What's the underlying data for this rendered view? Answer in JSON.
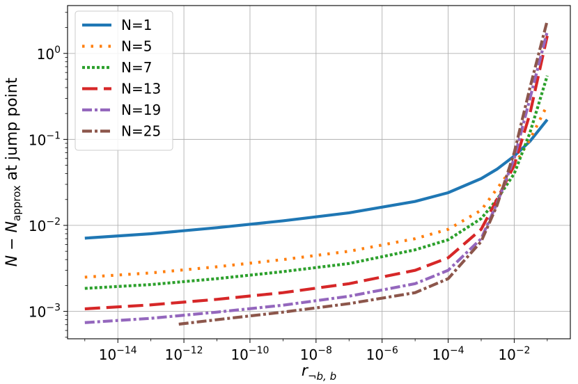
{
  "chart_data": {
    "type": "line",
    "xscale": "log",
    "yscale": "log",
    "xlim": [
      3e-16,
      0.5
    ],
    "ylim": [
      0.00048,
      3.6
    ],
    "grid": true,
    "legend_position": "top-left",
    "xlabel": {
      "main": "r",
      "sub": "¬b, b"
    },
    "ylabel": {
      "prefix": "N − N",
      "sub": "approx",
      "suffix": " at jump point"
    },
    "x_ticks": [
      {
        "value": 1e-14,
        "label": "10",
        "exp": "−14"
      },
      {
        "value": 1e-12,
        "label": "10",
        "exp": "−12"
      },
      {
        "value": 1e-10,
        "label": "10",
        "exp": "−10"
      },
      {
        "value": 1e-08,
        "label": "10",
        "exp": "−8"
      },
      {
        "value": 1e-06,
        "label": "10",
        "exp": "−6"
      },
      {
        "value": 0.0001,
        "label": "10",
        "exp": "−4"
      },
      {
        "value": 0.01,
        "label": "10",
        "exp": "−2"
      }
    ],
    "y_ticks": [
      {
        "value": 0.001,
        "label": "10",
        "exp": "−3"
      },
      {
        "value": 0.01,
        "label": "10",
        "exp": "−2"
      },
      {
        "value": 0.1,
        "label": "10",
        "exp": "−1"
      },
      {
        "value": 1,
        "label": "10",
        "exp": "0"
      }
    ],
    "series": [
      {
        "name": "N=1",
        "color": "#1f77b4",
        "style": "solid",
        "x": [
          1e-15,
          1e-13,
          1e-11,
          1e-09,
          1e-07,
          1e-05,
          0.0001,
          0.001,
          0.003,
          0.01,
          0.03,
          0.1
        ],
        "y": [
          0.0071,
          0.008,
          0.0094,
          0.0113,
          0.014,
          0.019,
          0.024,
          0.035,
          0.045,
          0.064,
          0.095,
          0.17
        ]
      },
      {
        "name": "N=5",
        "color": "#ff7f0e",
        "style": "dotted",
        "x": [
          1e-15,
          1e-13,
          1e-11,
          1e-09,
          1e-07,
          1e-05,
          0.0001,
          0.001,
          0.01,
          0.03,
          0.1
        ],
        "y": [
          0.0025,
          0.0028,
          0.0033,
          0.004,
          0.005,
          0.007,
          0.009,
          0.015,
          0.05,
          0.1,
          0.25
        ]
      },
      {
        "name": "N=7",
        "color": "#2ca02c",
        "style": "dotted",
        "x": [
          1e-15,
          1e-13,
          1e-11,
          1e-09,
          1e-07,
          1e-05,
          0.0001,
          0.001,
          0.003,
          0.01,
          0.03,
          0.1
        ],
        "y": [
          0.00185,
          0.00205,
          0.0024,
          0.0029,
          0.0036,
          0.0052,
          0.0068,
          0.012,
          0.02,
          0.04,
          0.12,
          0.55
        ]
      },
      {
        "name": "N=13",
        "color": "#d62728",
        "style": "dashed",
        "x": [
          1e-15,
          1e-13,
          1e-11,
          1e-09,
          1e-07,
          1e-05,
          0.0001,
          0.001,
          0.003,
          0.01,
          0.03,
          0.1
        ],
        "y": [
          0.00107,
          0.00119,
          0.00138,
          0.00165,
          0.0021,
          0.003,
          0.0042,
          0.009,
          0.02,
          0.05,
          0.2,
          1.6
        ]
      },
      {
        "name": "N=19",
        "color": "#9467bd",
        "style": "dashdot",
        "x": [
          1e-15,
          1e-13,
          1e-11,
          1e-09,
          1e-07,
          1e-05,
          0.0001,
          0.001,
          0.003,
          0.01,
          0.03,
          0.1
        ],
        "y": [
          0.00074,
          0.00083,
          0.00098,
          0.00118,
          0.0015,
          0.0021,
          0.003,
          0.007,
          0.018,
          0.06,
          0.3,
          1.8
        ]
      },
      {
        "name": "N=25",
        "color": "#8c564b",
        "style": "dashdot",
        "x": [
          7e-13,
          1e-11,
          1e-09,
          1e-07,
          1e-05,
          0.0001,
          0.001,
          0.003,
          0.01,
          0.03,
          0.1
        ],
        "y": [
          0.00071,
          0.0008,
          0.00098,
          0.00123,
          0.00165,
          0.0024,
          0.0065,
          0.017,
          0.07,
          0.4,
          2.4
        ]
      }
    ]
  }
}
